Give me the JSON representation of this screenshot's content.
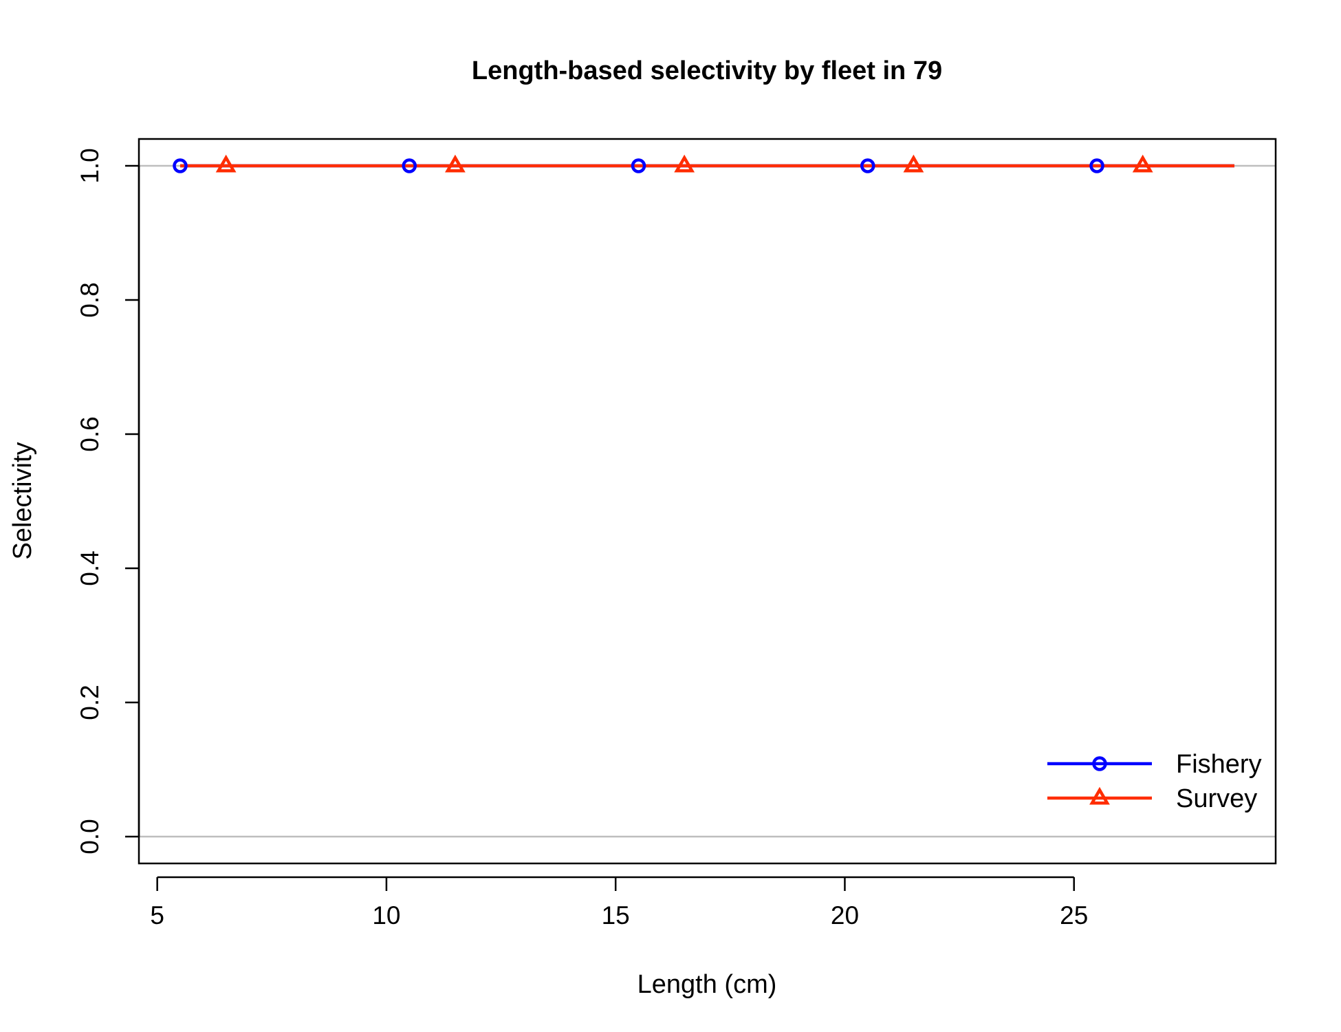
{
  "chart_data": {
    "type": "line",
    "title": "Length-based selectivity by fleet in 79",
    "xlabel": "Length (cm)",
    "ylabel": "Selectivity",
    "xlim": [
      4.6,
      29.4
    ],
    "ylim": [
      -0.04,
      1.04
    ],
    "x_ticks": [
      5,
      10,
      15,
      20,
      25
    ],
    "y_ticks": [
      0.0,
      0.2,
      0.4,
      0.6,
      0.8,
      1.0
    ],
    "x_tick_labels": [
      "5",
      "10",
      "15",
      "20",
      "25"
    ],
    "y_tick_labels": [
      "0.0",
      "0.2",
      "0.4",
      "0.6",
      "0.8",
      "1.0"
    ],
    "reference_lines_y": [
      0,
      1
    ],
    "reference_line_color": "#bebebe",
    "legend_position": "bottom-right",
    "grid": false,
    "series": [
      {
        "name": "Fishery",
        "color": "#0000ff",
        "marker": "circle",
        "line_x": [
          5.5,
          28.5
        ],
        "line_y": [
          1,
          1
        ],
        "marker_x": [
          5.5,
          10.5,
          15.5,
          20.5,
          25.5
        ],
        "marker_y": [
          1,
          1,
          1,
          1,
          1
        ]
      },
      {
        "name": "Survey",
        "color": "#ff2d00",
        "marker": "triangle",
        "line_x": [
          5.5,
          28.5
        ],
        "line_y": [
          1,
          1
        ],
        "marker_x": [
          6.5,
          11.5,
          16.5,
          21.5,
          26.5
        ],
        "marker_y": [
          1,
          1,
          1,
          1,
          1
        ]
      }
    ]
  }
}
